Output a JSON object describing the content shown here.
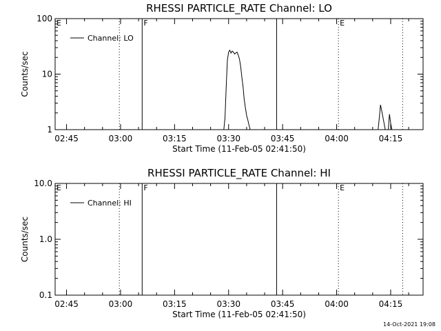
{
  "footer": {
    "timestamp": "14-Oct-2021 19:08"
  },
  "chart_data": [
    {
      "type": "line",
      "title": "RHESSI PARTICLE_RATE Channel: LO",
      "xlabel": "Start Time (11-Feb-05 02:41:50)",
      "ylabel": "Counts/sec",
      "y_scale": "log",
      "ylim": [
        1,
        100
      ],
      "xlim": [
        "02:41:50",
        "04:24:00"
      ],
      "xticks": [
        "02:45",
        "03:00",
        "03:15",
        "03:30",
        "03:45",
        "04:00",
        "04:15"
      ],
      "yticks": [
        "1",
        "10",
        "100"
      ],
      "legend": {
        "position": "top-left",
        "entries": [
          "Channel: LO"
        ]
      },
      "markers": [
        {
          "time": "02:41:50",
          "style": "dotted",
          "label": "E"
        },
        {
          "time": "02:59:40",
          "style": "dotted",
          "label": ""
        },
        {
          "time": "03:06:00",
          "style": "solid",
          "label": "F"
        },
        {
          "time": "03:43:20",
          "style": "solid",
          "label": ""
        },
        {
          "time": "04:00:30",
          "style": "dotted",
          "label": "E"
        },
        {
          "time": "04:18:20",
          "style": "dotted",
          "label": ""
        }
      ],
      "series": [
        {
          "name": "Channel: LO",
          "segments": [
            {
              "x": [
                "03:28:40",
                "03:29:00",
                "03:29:20",
                "03:29:40",
                "03:30:00",
                "03:30:20",
                "03:30:40",
                "03:31:00",
                "03:31:20",
                "03:31:40",
                "03:32:00",
                "03:32:20",
                "03:32:40",
                "03:33:00",
                "03:33:20",
                "03:33:40",
                "03:34:00",
                "03:34:20",
                "03:34:40",
                "03:35:00",
                "03:35:20",
                "03:35:40",
                "03:36:00"
              ],
              "y": [
                1,
                1.6,
                6,
                18,
                25,
                27,
                24,
                26,
                25,
                23,
                24,
                25,
                22,
                19,
                14,
                9,
                6,
                3.5,
                2.5,
                1.8,
                1.5,
                1.2,
                1
              ]
            },
            {
              "x": [
                "04:11:30",
                "04:11:50",
                "04:12:10",
                "04:12:30",
                "04:12:50",
                "04:13:10",
                "04:13:30"
              ],
              "y": [
                1,
                1.6,
                2.8,
                2.2,
                1.7,
                1.3,
                1
              ]
            },
            {
              "x": [
                "04:14:20",
                "04:14:40",
                "04:15:00",
                "04:15:20"
              ],
              "y": [
                1,
                1.9,
                1.3,
                1
              ]
            }
          ]
        }
      ]
    },
    {
      "type": "line",
      "title": "RHESSI PARTICLE_RATE Channel: HI",
      "xlabel": "Start Time (11-Feb-05 02:41:50)",
      "ylabel": "Counts/sec",
      "y_scale": "log",
      "ylim": [
        0.1,
        10
      ],
      "xlim": [
        "02:41:50",
        "04:24:00"
      ],
      "xticks": [
        "02:45",
        "03:00",
        "03:15",
        "03:30",
        "03:45",
        "04:00",
        "04:15"
      ],
      "yticks": [
        "0.1",
        "1.0",
        "10.0"
      ],
      "legend": {
        "position": "top-left",
        "entries": [
          "Channel: HI"
        ]
      },
      "markers": [
        {
          "time": "02:41:50",
          "style": "dotted",
          "label": "E"
        },
        {
          "time": "02:59:40",
          "style": "dotted",
          "label": ""
        },
        {
          "time": "03:06:00",
          "style": "solid",
          "label": "F"
        },
        {
          "time": "03:43:20",
          "style": "solid",
          "label": ""
        },
        {
          "time": "04:00:30",
          "style": "dotted",
          "label": "E"
        },
        {
          "time": "04:18:20",
          "style": "dotted",
          "label": ""
        }
      ],
      "series": [
        {
          "name": "Channel: HI",
          "segments": []
        }
      ]
    }
  ]
}
